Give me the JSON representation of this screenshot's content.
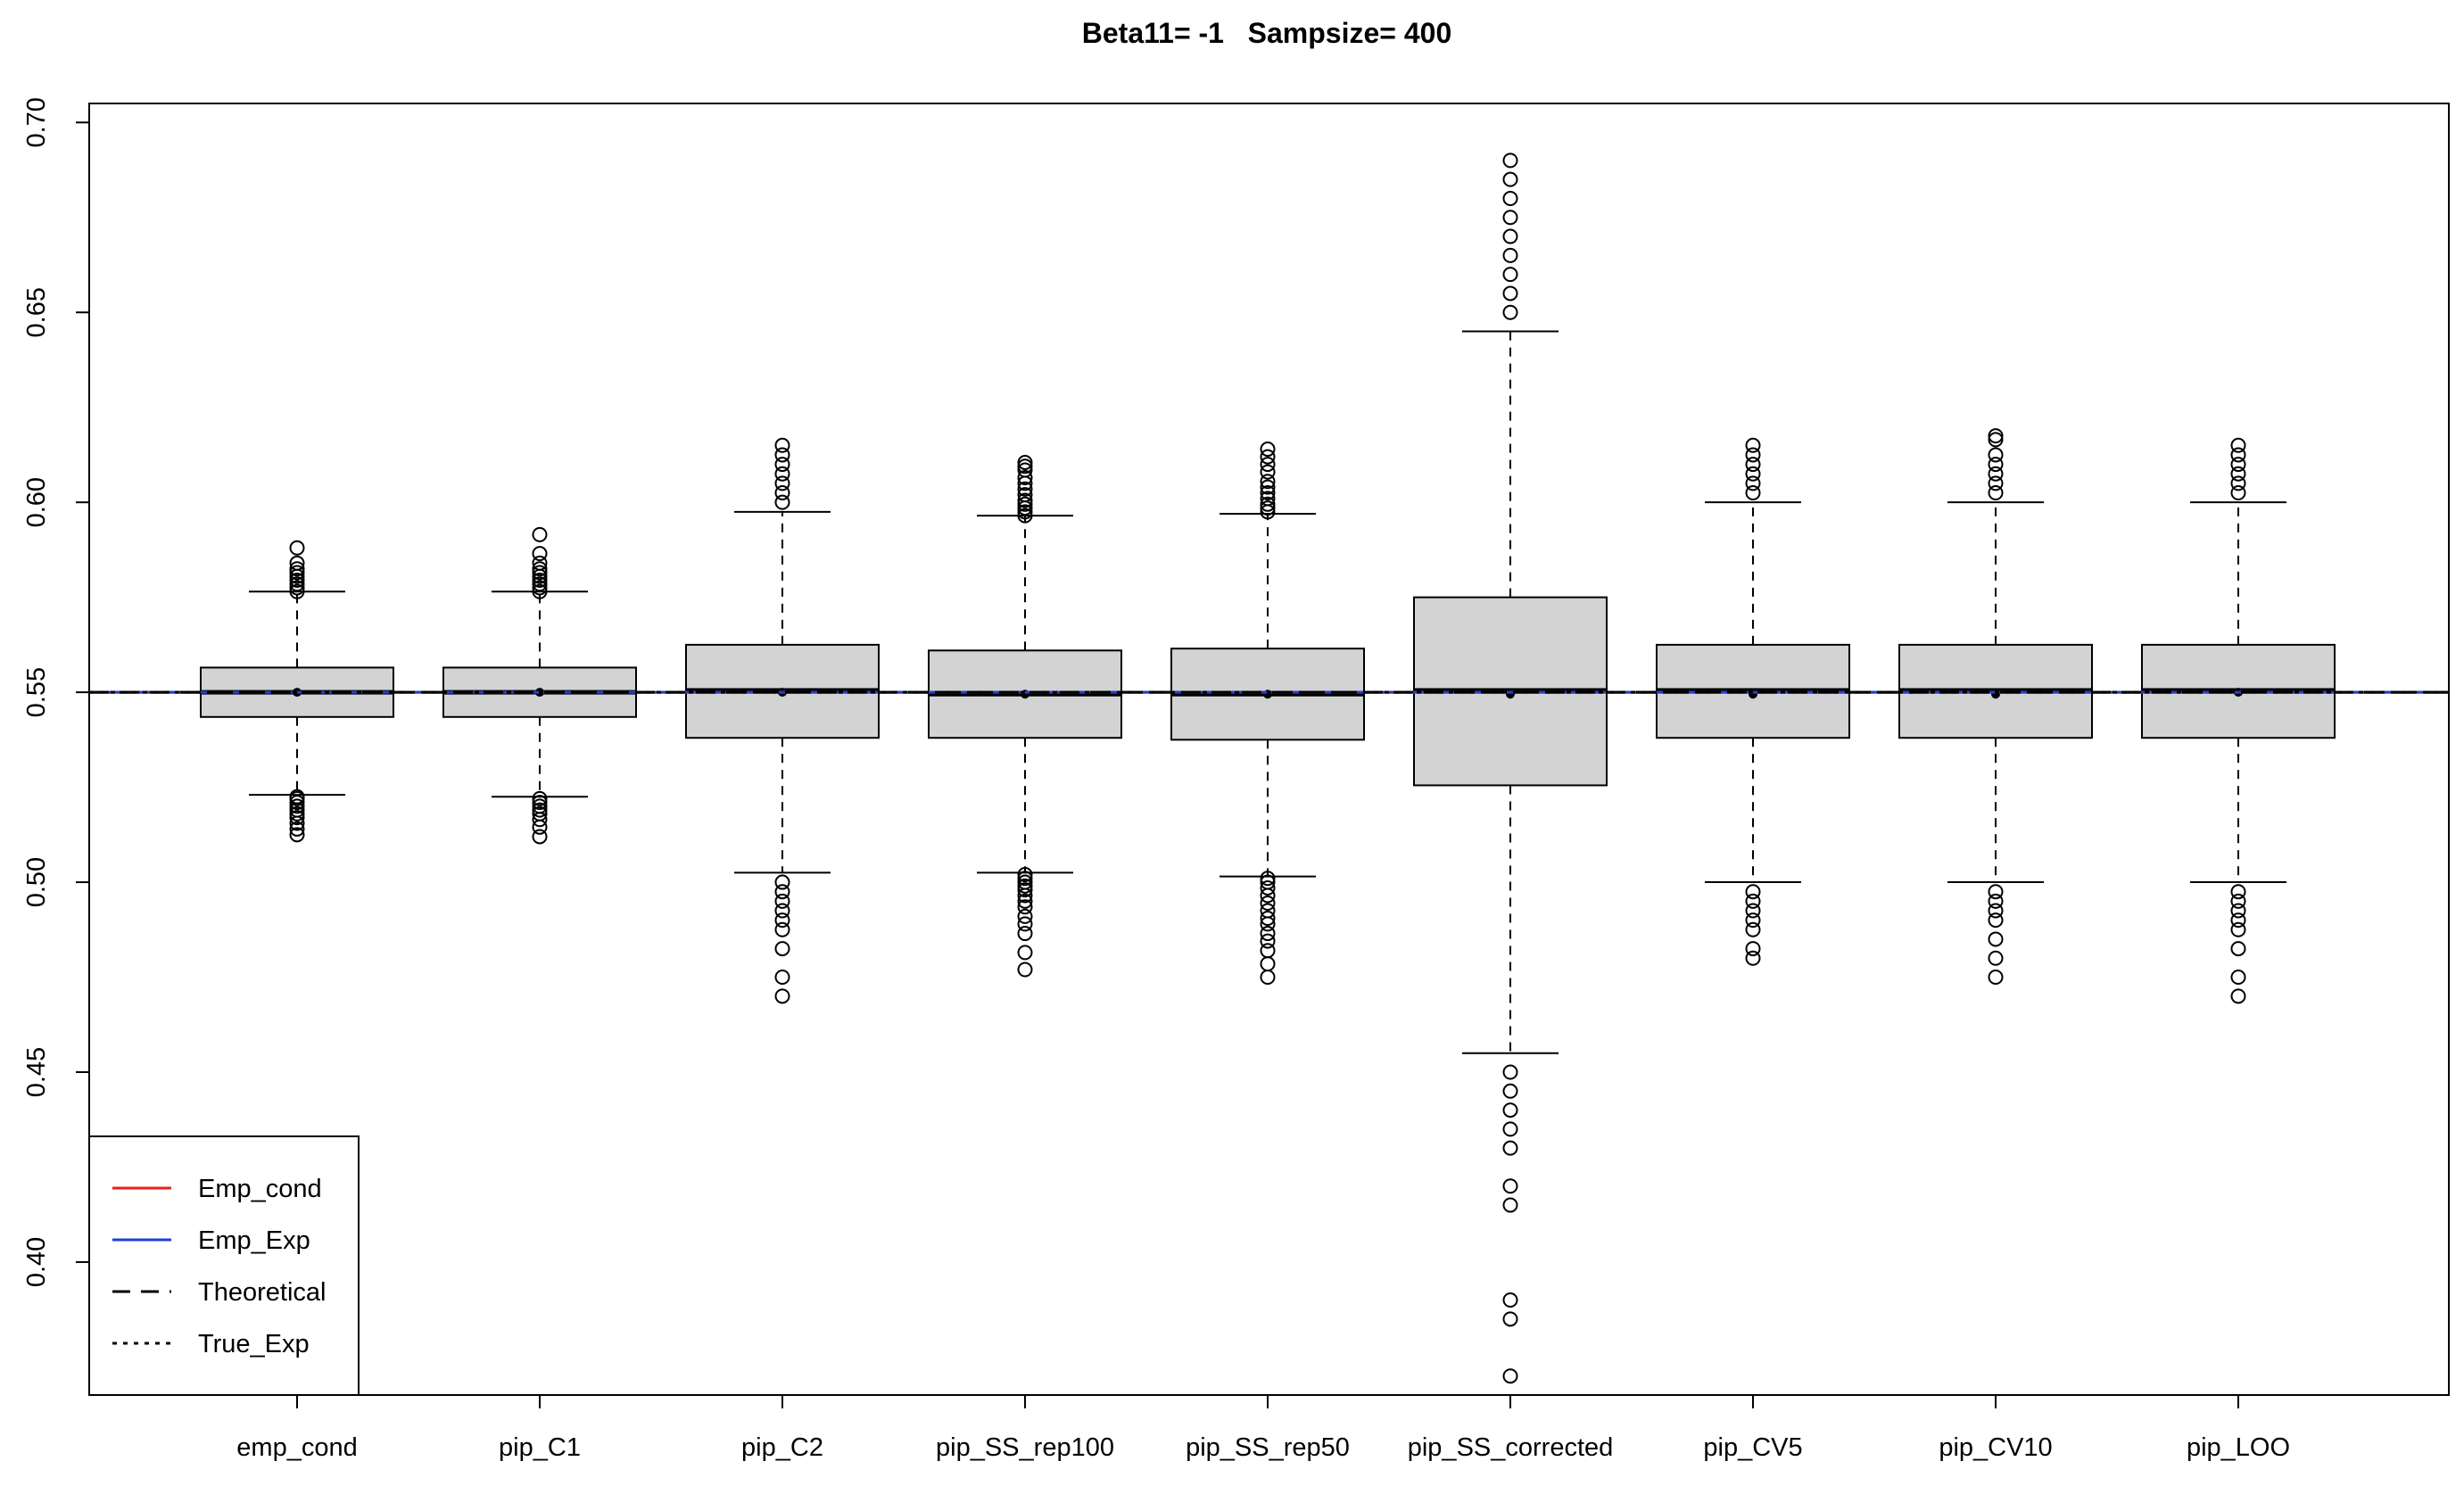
{
  "chart_data": {
    "type": "boxplot",
    "title": "Beta11= -1   Sampsize= 400",
    "xlabel": "",
    "ylabel": "",
    "ylim": [
      0.365,
      0.705
    ],
    "yticks": [
      "0.40",
      "0.45",
      "0.50",
      "0.55",
      "0.60",
      "0.65",
      "0.70"
    ],
    "categories": [
      "emp_cond",
      "pip_C1",
      "pip_C2",
      "pip_SS_rep100",
      "pip_SS_rep50",
      "pip_SS_corrected",
      "pip_CV5",
      "pip_CV10",
      "pip_LOO"
    ],
    "boxes": [
      {
        "name": "emp_cond",
        "whisker_low": 0.523,
        "q1": 0.5435,
        "median": 0.55,
        "q3": 0.5565,
        "whisker_high": 0.5765,
        "mean": 0.55,
        "outliers": [
          0.5125,
          0.514,
          0.5155,
          0.517,
          0.518,
          0.519,
          0.52,
          0.521,
          0.522,
          0.5225,
          0.5765,
          0.5775,
          0.5785,
          0.5795,
          0.5805,
          0.5815,
          0.5825,
          0.584,
          0.588
        ]
      },
      {
        "name": "pip_C1",
        "whisker_low": 0.5225,
        "q1": 0.5435,
        "median": 0.55,
        "q3": 0.5565,
        "whisker_high": 0.5765,
        "mean": 0.55,
        "outliers": [
          0.512,
          0.5145,
          0.5165,
          0.518,
          0.519,
          0.52,
          0.521,
          0.522,
          0.5765,
          0.5775,
          0.5785,
          0.5795,
          0.5805,
          0.5815,
          0.5825,
          0.584,
          0.5865,
          0.5915
        ]
      },
      {
        "name": "pip_C2",
        "whisker_low": 0.5025,
        "q1": 0.538,
        "median": 0.5505,
        "q3": 0.5625,
        "whisker_high": 0.5975,
        "mean": 0.55,
        "outliers": [
          0.47,
          0.475,
          0.4825,
          0.4875,
          0.49,
          0.4925,
          0.495,
          0.4975,
          0.5,
          0.6,
          0.6025,
          0.605,
          0.6075,
          0.61,
          0.6125,
          0.615
        ]
      },
      {
        "name": "pip_SS_rep100",
        "whisker_low": 0.5025,
        "q1": 0.538,
        "median": 0.5495,
        "q3": 0.561,
        "whisker_high": 0.5965,
        "mean": 0.5495,
        "outliers": [
          0.477,
          0.4815,
          0.4865,
          0.489,
          0.491,
          0.4935,
          0.495,
          0.4965,
          0.498,
          0.499,
          0.5,
          0.501,
          0.502,
          0.5965,
          0.5975,
          0.5985,
          0.5995,
          0.6005,
          0.602,
          0.6035,
          0.605,
          0.6065,
          0.6085,
          0.6095,
          0.6105
        ]
      },
      {
        "name": "pip_SS_rep50",
        "whisker_low": 0.5015,
        "q1": 0.5375,
        "median": 0.5495,
        "q3": 0.5615,
        "whisker_high": 0.597,
        "mean": 0.5495,
        "outliers": [
          0.475,
          0.4785,
          0.482,
          0.4845,
          0.4865,
          0.489,
          0.4905,
          0.4925,
          0.4945,
          0.4965,
          0.4985,
          0.5,
          0.501,
          0.5975,
          0.5985,
          0.5995,
          0.601,
          0.6025,
          0.604,
          0.6055,
          0.608,
          0.61,
          0.612,
          0.614
        ]
      },
      {
        "name": "pip_SS_corrected",
        "whisker_low": 0.455,
        "q1": 0.5255,
        "median": 0.5505,
        "q3": 0.575,
        "whisker_high": 0.645,
        "mean": 0.5495,
        "outliers": [
          0.37,
          0.385,
          0.39,
          0.415,
          0.42,
          0.43,
          0.435,
          0.44,
          0.445,
          0.45,
          0.65,
          0.655,
          0.66,
          0.665,
          0.67,
          0.675,
          0.68,
          0.685,
          0.69
        ]
      },
      {
        "name": "pip_CV5",
        "whisker_low": 0.5,
        "q1": 0.538,
        "median": 0.5505,
        "q3": 0.5625,
        "whisker_high": 0.6,
        "mean": 0.5495,
        "outliers": [
          0.48,
          0.4825,
          0.4875,
          0.49,
          0.4925,
          0.495,
          0.4975,
          0.6025,
          0.605,
          0.6075,
          0.61,
          0.6125,
          0.615
        ]
      },
      {
        "name": "pip_CV10",
        "whisker_low": 0.5,
        "q1": 0.538,
        "median": 0.5505,
        "q3": 0.5625,
        "whisker_high": 0.6,
        "mean": 0.5495,
        "outliers": [
          0.475,
          0.48,
          0.485,
          0.49,
          0.4925,
          0.495,
          0.4975,
          0.6025,
          0.605,
          0.6075,
          0.61,
          0.6125,
          0.6165,
          0.6175
        ]
      },
      {
        "name": "pip_LOO",
        "whisker_low": 0.5,
        "q1": 0.538,
        "median": 0.5505,
        "q3": 0.5625,
        "whisker_high": 0.6,
        "mean": 0.55,
        "outliers": [
          0.47,
          0.475,
          0.4825,
          0.4875,
          0.49,
          0.4925,
          0.495,
          0.4975,
          0.6025,
          0.605,
          0.6075,
          0.61,
          0.6125,
          0.615
        ]
      }
    ],
    "reference_lines": [
      {
        "name": "Emp_cond",
        "value": 0.55,
        "color": "#e8201a",
        "style": "solid"
      },
      {
        "name": "Emp_Exp",
        "value": 0.55,
        "color": "#1f3fd9",
        "style": "solid"
      },
      {
        "name": "Theoretical",
        "value": 0.55,
        "color": "#000000",
        "style": "dashed"
      },
      {
        "name": "True_Exp",
        "value": 0.55,
        "color": "#000000",
        "style": "dotted"
      }
    ],
    "legend": {
      "position": "bottom-left",
      "entries": [
        {
          "label": "Emp_cond",
          "color": "#e8201a",
          "style": "solid"
        },
        {
          "label": "Emp_Exp",
          "color": "#1f3fd9",
          "style": "solid"
        },
        {
          "label": "Theoretical",
          "color": "#000000",
          "style": "dashed"
        },
        {
          "label": "True_Exp",
          "color": "#000000",
          "style": "dotted"
        }
      ]
    },
    "box_fill": "#d3d3d3",
    "grid": false
  }
}
